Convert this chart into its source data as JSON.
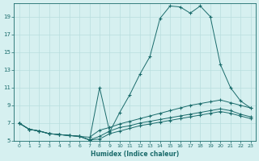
{
  "xlabel": "Humidex (Indice chaleur)",
  "background_color": "#d6f0f0",
  "grid_color": "#b8dede",
  "line_color": "#1a6b6b",
  "xlim": [
    -0.5,
    23.5
  ],
  "ylim": [
    5,
    20.5
  ],
  "yticks": [
    5,
    7,
    9,
    11,
    13,
    15,
    17,
    19
  ],
  "xticks": [
    0,
    1,
    2,
    3,
    4,
    5,
    6,
    7,
    8,
    9,
    10,
    11,
    12,
    13,
    14,
    15,
    16,
    17,
    18,
    19,
    20,
    21,
    22,
    23
  ],
  "line1_x": [
    0,
    1,
    2,
    3,
    4,
    5,
    6,
    7,
    8,
    9,
    10,
    11,
    12,
    13,
    14,
    15,
    16,
    17,
    18,
    19,
    20,
    21,
    22,
    23
  ],
  "line1_y": [
    7.0,
    6.3,
    6.1,
    5.8,
    5.7,
    5.6,
    5.5,
    5.1,
    11.0,
    6.0,
    8.2,
    10.2,
    12.5,
    14.5,
    18.8,
    20.2,
    20.1,
    19.4,
    20.2,
    19.0,
    13.6,
    11.0,
    9.5,
    8.7
  ],
  "line2_x": [
    0,
    1,
    2,
    3,
    4,
    5,
    6,
    7,
    8,
    9,
    10,
    11,
    12,
    13,
    14,
    15,
    16,
    17,
    18,
    19,
    20,
    21,
    22,
    23
  ],
  "line2_y": [
    7.0,
    6.3,
    6.1,
    5.8,
    5.7,
    5.6,
    5.5,
    5.4,
    6.2,
    6.5,
    6.9,
    7.2,
    7.5,
    7.8,
    8.1,
    8.4,
    8.7,
    9.0,
    9.2,
    9.4,
    9.6,
    9.3,
    9.0,
    8.7
  ],
  "line3_x": [
    0,
    1,
    2,
    3,
    4,
    5,
    6,
    7,
    8,
    9,
    10,
    11,
    12,
    13,
    14,
    15,
    16,
    17,
    18,
    19,
    20,
    21,
    22,
    23
  ],
  "line3_y": [
    7.0,
    6.3,
    6.1,
    5.8,
    5.7,
    5.6,
    5.5,
    5.1,
    5.5,
    6.1,
    6.5,
    6.7,
    7.0,
    7.2,
    7.4,
    7.6,
    7.8,
    8.0,
    8.2,
    8.4,
    8.6,
    8.4,
    8.0,
    7.7
  ],
  "line4_x": [
    0,
    1,
    2,
    3,
    4,
    5,
    6,
    7,
    8,
    9,
    10,
    11,
    12,
    13,
    14,
    15,
    16,
    17,
    18,
    19,
    20,
    21,
    22,
    23
  ],
  "line4_y": [
    7.0,
    6.3,
    6.1,
    5.8,
    5.7,
    5.6,
    5.5,
    5.1,
    5.2,
    5.8,
    6.1,
    6.4,
    6.7,
    6.9,
    7.1,
    7.3,
    7.5,
    7.7,
    7.9,
    8.1,
    8.3,
    8.1,
    7.8,
    7.5
  ]
}
